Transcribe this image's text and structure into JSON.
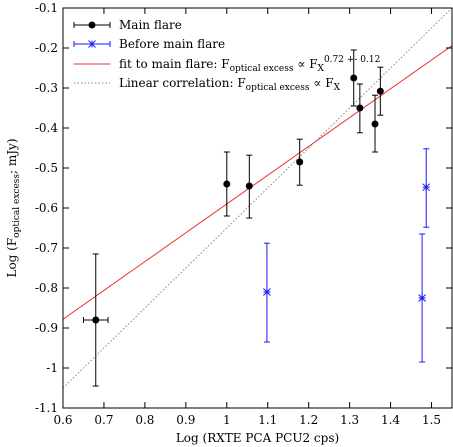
{
  "chart_data": {
    "type": "scatter",
    "xlabel": "Log (RXTE PCA PCU2 cps)",
    "ylabel": "Log (F",
    "ylabel_sub": "optical excess",
    "ylabel_tail": "; mJy)",
    "xlim": [
      0.6,
      1.55
    ],
    "ylim": [
      -1.1,
      -0.1
    ],
    "x_ticks": [
      0.6,
      0.7,
      0.8,
      0.9,
      1,
      1.1,
      1.2,
      1.3,
      1.4,
      1.5
    ],
    "x_tick_labels": [
      "0.6",
      "0.7",
      "0.8",
      "0.9",
      "1",
      "1.1",
      "1.2",
      "1.3",
      "1.4",
      "1.5"
    ],
    "y_ticks": [
      -1.1,
      -1,
      -0.9,
      -0.8,
      -0.7,
      -0.6,
      -0.5,
      -0.4,
      -0.3,
      -0.2,
      -0.1
    ],
    "y_tick_labels": [
      "-1.1",
      "-1",
      "-0.9",
      "-0.8",
      "-0.7",
      "-0.6",
      "-0.5",
      "-0.4",
      "-0.3",
      "-0.2",
      "-0.1"
    ],
    "legend_position": "top-left",
    "series": [
      {
        "name": "Main flare",
        "marker": "circle",
        "color": "#000000",
        "points": [
          {
            "x": 0.68,
            "y": -0.88,
            "ylo": -1.045,
            "yhi": -0.715,
            "xlo": 0.65,
            "xhi": 0.71
          },
          {
            "x": 1.0,
            "y": -0.54,
            "ylo": -0.62,
            "yhi": -0.46
          },
          {
            "x": 1.055,
            "y": -0.545,
            "ylo": -0.625,
            "yhi": -0.468
          },
          {
            "x": 1.178,
            "y": -0.485,
            "ylo": -0.543,
            "yhi": -0.428
          },
          {
            "x": 1.31,
            "y": -0.275,
            "ylo": -0.345,
            "yhi": -0.205
          },
          {
            "x": 1.325,
            "y": -0.35,
            "ylo": -0.412,
            "yhi": -0.29
          },
          {
            "x": 1.362,
            "y": -0.39,
            "ylo": -0.46,
            "yhi": -0.318
          },
          {
            "x": 1.375,
            "y": -0.308,
            "ylo": -0.368,
            "yhi": -0.248
          }
        ]
      },
      {
        "name": "Before main flare",
        "marker": "asterisk",
        "color": "#1a1aff",
        "points": [
          {
            "x": 1.098,
            "y": -0.81,
            "ylo": -0.935,
            "yhi": -0.688
          },
          {
            "x": 1.477,
            "y": -0.825,
            "ylo": -0.985,
            "yhi": -0.665
          },
          {
            "x": 1.487,
            "y": -0.548,
            "ylo": -0.648,
            "yhi": -0.452
          }
        ]
      }
    ],
    "lines": [
      {
        "name": "fit to main flare",
        "label_prefix": "fit to main flare: F",
        "label_sub": "optical excess",
        "label_mid": " ∝ F",
        "label_sub2": "X",
        "label_sup": "0.72 +- 0.12",
        "color": "#ee3333",
        "style": "solid",
        "slope": 0.72,
        "intercept": -1.31,
        "xrange": [
          0.6,
          1.55
        ]
      },
      {
        "name": "Linear correlation",
        "label_prefix": "Linear correlation: F",
        "label_sub": "optical excess",
        "label_mid": " ∝ F",
        "label_sub2": "X",
        "label_sup": "",
        "color": "#888888",
        "style": "dotted",
        "slope": 1.0,
        "intercept": -1.65,
        "xrange": [
          0.6,
          1.55
        ]
      }
    ]
  }
}
